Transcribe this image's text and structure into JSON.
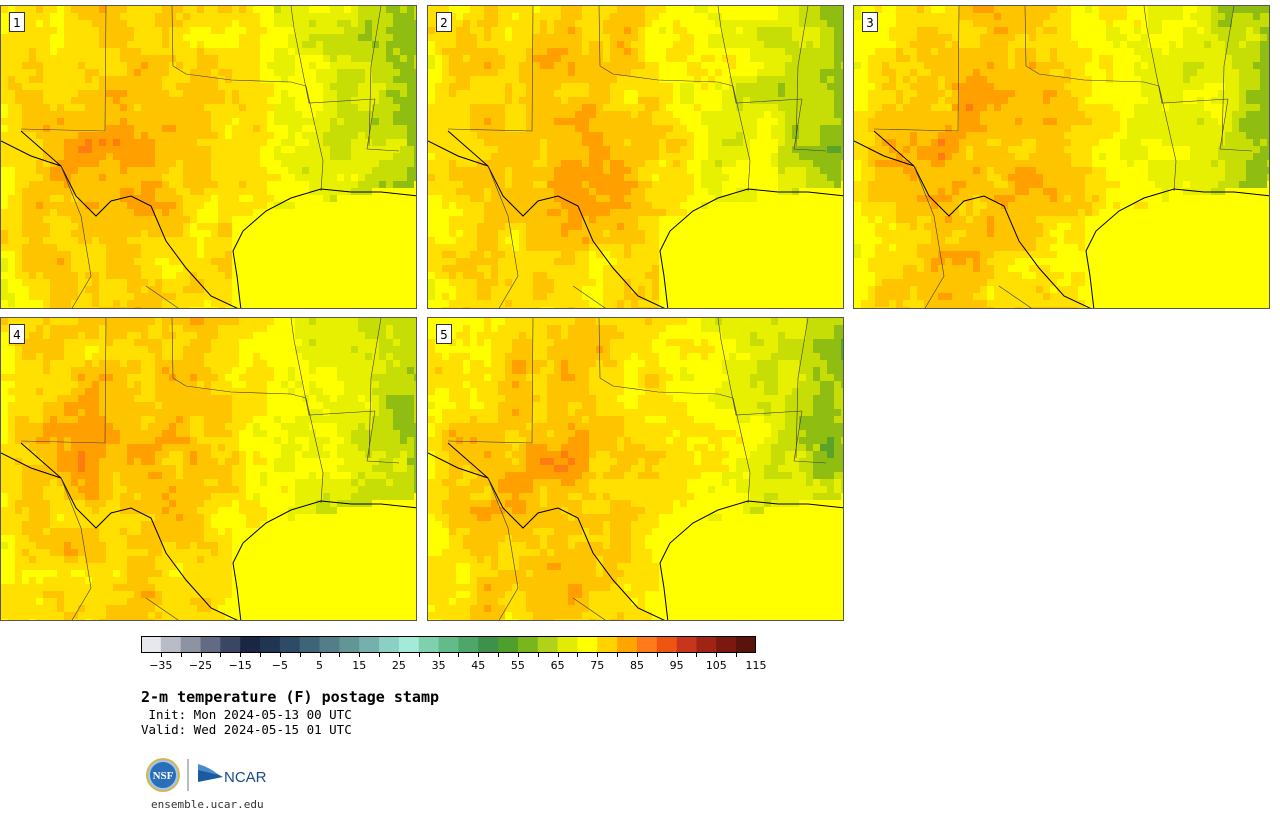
{
  "panels": [
    {
      "label": "1",
      "variant": 0
    },
    {
      "label": "2",
      "variant": 1
    },
    {
      "label": "3",
      "variant": 2
    },
    {
      "label": "4",
      "variant": 3
    },
    {
      "label": "5",
      "variant": 4
    }
  ],
  "colorbar": {
    "colors": [
      "#e6e8ec",
      "#b9bcc6",
      "#8e93a4",
      "#636a84",
      "#3b4564",
      "#1a2644",
      "#1f3552",
      "#2d4b66",
      "#3e6478",
      "#517e88",
      "#619596",
      "#76b0ad",
      "#8ccfc5",
      "#a5ead9",
      "#7fd1ad",
      "#64bb8a",
      "#4fa66a",
      "#3d914b",
      "#4f9f2b",
      "#79b51c",
      "#b2d21a",
      "#e2eb06",
      "#ffff00",
      "#ffd300",
      "#ffa500",
      "#ff7a1a",
      "#ee5511",
      "#c7361a",
      "#a02414",
      "#7b1810",
      "#5a120c"
    ],
    "tick_labels": [
      "−35",
      "−25",
      "−15",
      "−5",
      "5",
      "15",
      "25",
      "35",
      "45",
      "55",
      "65",
      "75",
      "85",
      "95",
      "105",
      "115"
    ]
  },
  "title": "2-m temperature (F) postage stamp",
  "init_line": " Init: Mon 2024-05-13 00 UTC",
  "valid_line": "Valid: Wed 2024-05-15 01 UTC",
  "logos": {
    "nsf": "NSF",
    "ncar": "NCAR"
  },
  "site": "ensemble.ucar.edu"
}
